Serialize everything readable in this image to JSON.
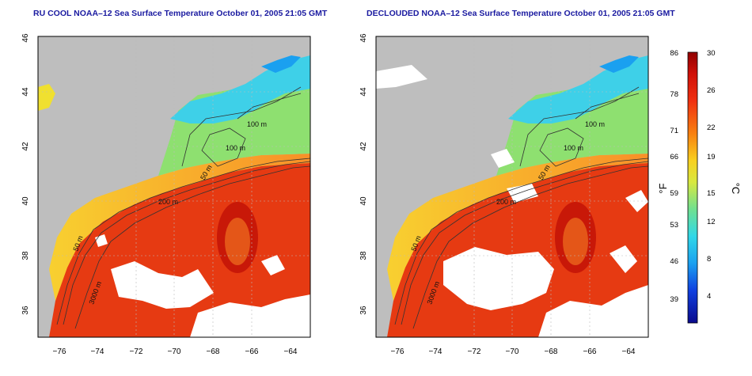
{
  "panels": [
    {
      "title": "RU COOL NOAA–12 Sea Surface Temperature October 01, 2005 21:05 GMT",
      "variant": "raw"
    },
    {
      "title": "DECLOUDED NOAA–12 Sea Surface Temperature October 01, 2005 21:05 GMT",
      "variant": "declouded"
    }
  ],
  "axes": {
    "lon_ticks": [
      "−76",
      "−74",
      "−72",
      "−70",
      "−68",
      "−66",
      "−64"
    ],
    "lat_ticks": [
      "36",
      "38",
      "40",
      "42",
      "44",
      "46"
    ]
  },
  "contour_labels": [
    "100 m",
    "100 m",
    "50 m",
    "200 m",
    "50 m",
    "3000 m"
  ],
  "colorbar": {
    "fahrenheit_ticks": [
      "86",
      "78",
      "71",
      "66",
      "59",
      "53",
      "46",
      "39"
    ],
    "celsius_ticks": [
      "30",
      "26",
      "22",
      "19",
      "15",
      "12",
      "8",
      "4"
    ],
    "left_unit": "°F",
    "right_unit": "°C"
  },
  "colors": {
    "land": "#bebebe",
    "cloud": "#ffffff",
    "title": "#1a1aa0",
    "warm": "#e03010",
    "cold": "#30c8f0"
  }
}
